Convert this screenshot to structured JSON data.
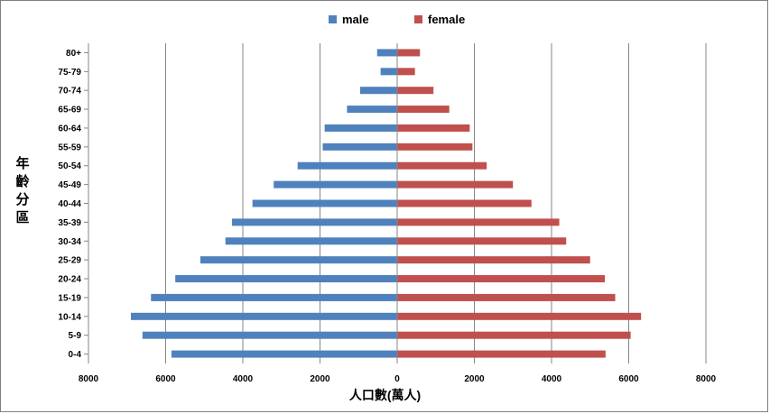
{
  "chart_data": {
    "type": "bar",
    "orientation": "horizontal",
    "subtype": "population-pyramid",
    "title": "",
    "xlabel": "人口數(萬人)",
    "ylabel": "年齡分區",
    "xlim": [
      -8000,
      8000
    ],
    "xticks": [
      -8000,
      -6000,
      -4000,
      -2000,
      0,
      2000,
      4000,
      6000,
      8000
    ],
    "xtick_labels": [
      "8000",
      "6000",
      "4000",
      "2000",
      "0",
      "2000",
      "4000",
      "6000",
      "8000"
    ],
    "grid": "vertical",
    "legend_position": "top-center",
    "categories": [
      "0-4",
      "5-9",
      "10-14",
      "15-19",
      "20-24",
      "25-29",
      "30-34",
      "35-39",
      "40-44",
      "45-49",
      "50-54",
      "55-59",
      "60-64",
      "65-69",
      "70-74",
      "75-79",
      "80+"
    ],
    "series": [
      {
        "name": "male",
        "color": "#4f81bd",
        "side": "left",
        "values": [
          5850,
          6600,
          6900,
          6380,
          5750,
          5100,
          4450,
          4280,
          3750,
          3200,
          2580,
          1930,
          1880,
          1300,
          960,
          430,
          520
        ]
      },
      {
        "name": "female",
        "color": "#c0504d",
        "side": "right",
        "values": [
          5400,
          6050,
          6320,
          5650,
          5380,
          5000,
          4380,
          4200,
          3480,
          3000,
          2320,
          1950,
          1880,
          1350,
          940,
          460,
          590
        ]
      }
    ]
  }
}
